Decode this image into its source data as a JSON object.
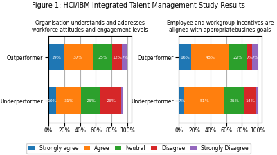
{
  "title": "Figure 1: HCI/IBM Integrated Talent Management Study Results",
  "chart_data": [
    {
      "type": "bar",
      "orientation": "horizontal",
      "stacked": true,
      "data_labels": true,
      "grid": true,
      "legend": "lower center",
      "title": "Organisation understands and addresses\nworkforce attitudes and engagement levels",
      "categories": [
        "Outperformer",
        "Underperformer"
      ],
      "xlim": [
        0,
        105
      ],
      "xticks": [
        {
          "value": 0,
          "label": "0%"
        },
        {
          "value": 20,
          "label": "20%"
        },
        {
          "value": 40,
          "label": "40%"
        },
        {
          "value": 60,
          "label": "60%"
        },
        {
          "value": 80,
          "label": "80%"
        },
        {
          "value": 100,
          "label": "100%"
        }
      ],
      "series": [
        {
          "name": "Strongly agree",
          "values": [
            19,
            10
          ],
          "value_labels": [
            "19%",
            "10%"
          ]
        },
        {
          "name": "Agree",
          "values": [
            37,
            31
          ],
          "value_labels": [
            "37%",
            "31%"
          ]
        },
        {
          "name": "Neutral",
          "values": [
            25,
            25
          ],
          "value_labels": [
            "25%",
            "25%"
          ]
        },
        {
          "name": "Disagree",
          "values": [
            12,
            26
          ],
          "value_labels": [
            "12%",
            "26%"
          ]
        },
        {
          "name": "Strongly Disagree",
          "values": [
            7,
            3
          ],
          "value_labels": [
            "7%",
            null
          ]
        }
      ]
    },
    {
      "type": "bar",
      "orientation": "horizontal",
      "stacked": true,
      "data_labels": true,
      "grid": true,
      "legend": "lower center",
      "title": "Employee and workgroup incentives are\naligned with appropriatebusines goals",
      "categories": [
        "Outperformer",
        "Underperformer"
      ],
      "xlim": [
        0,
        105
      ],
      "xticks": [
        {
          "value": 0,
          "label": "0%"
        },
        {
          "value": 20,
          "label": "20%"
        },
        {
          "value": 40,
          "label": "40%"
        },
        {
          "value": 60,
          "label": "60%"
        },
        {
          "value": 80,
          "label": "80%"
        },
        {
          "value": 100,
          "label": "100%"
        }
      ],
      "series": [
        {
          "name": "Strongly agree",
          "values": [
            16,
            7
          ],
          "value_labels": [
            "16%",
            "7%"
          ]
        },
        {
          "name": "Agree",
          "values": [
            48,
            51
          ],
          "value_labels": [
            "48%",
            "51%"
          ]
        },
        {
          "name": "Neutral",
          "values": [
            22,
            25
          ],
          "value_labels": [
            "22%",
            "25%"
          ]
        },
        {
          "name": "Disagree",
          "values": [
            7,
            14
          ],
          "value_labels": [
            "7%",
            "14%"
          ]
        },
        {
          "name": "Strongly Disagree",
          "values": [
            7,
            3
          ],
          "value_labels": [
            "7%",
            null
          ]
        }
      ]
    }
  ]
}
